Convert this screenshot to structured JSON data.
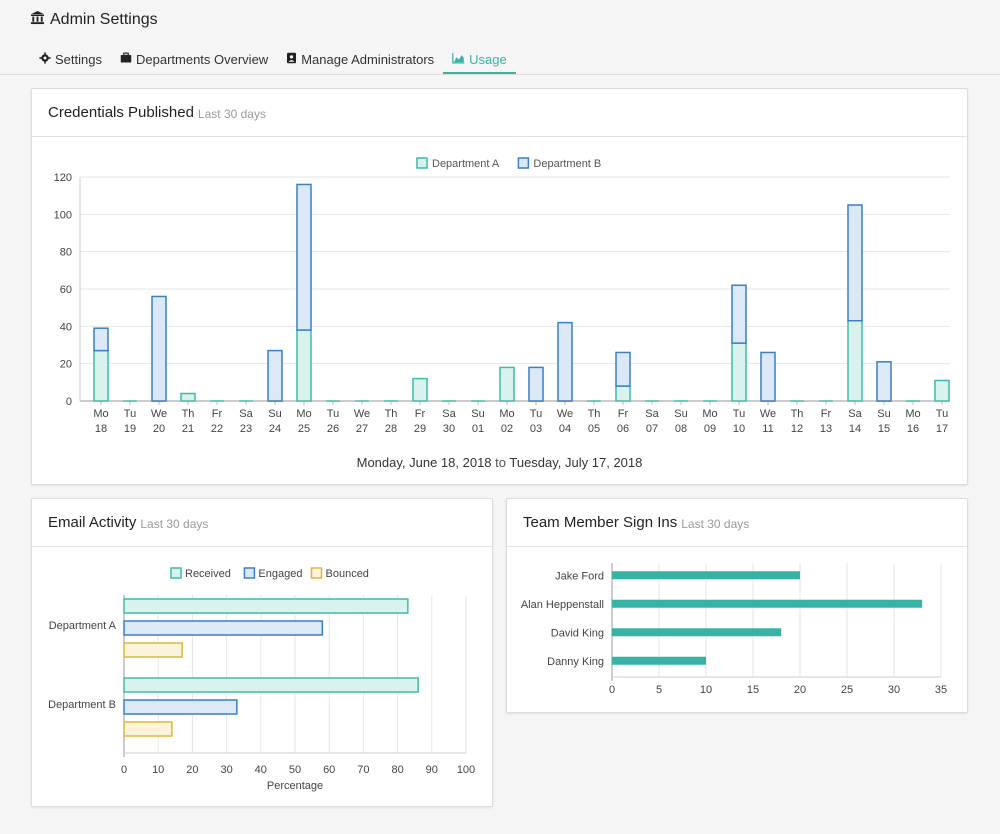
{
  "app": {
    "title": "Admin Settings",
    "icon": "bank-icon"
  },
  "tabs": [
    {
      "label": "Settings",
      "icon": "gear-icon",
      "active": false
    },
    {
      "label": "Departments Overview",
      "icon": "briefcase-icon",
      "active": false
    },
    {
      "label": "Manage Administrators",
      "icon": "id-badge-icon",
      "active": false
    },
    {
      "label": "Usage",
      "icon": "area-chart-icon",
      "active": true
    }
  ],
  "colors": {
    "accent": "#37b3a5",
    "deptA_fill": "#d9f2ee",
    "deptA_stroke": "#3cbca9",
    "deptB_fill": "#dbe8f6",
    "deptB_stroke": "#3b7fc4",
    "bounced_fill": "#fbf3da",
    "bounced_stroke": "#e0b53d"
  },
  "credentials": {
    "title": "Credentials Published",
    "subtitle": "Last 30 days",
    "date_from": "Monday, June 18, 2018",
    "date_to_word": "to",
    "date_to": "Tuesday, July 17, 2018"
  },
  "email": {
    "title": "Email Activity",
    "subtitle": "Last 30 days"
  },
  "signins": {
    "title": "Team Member Sign Ins",
    "subtitle": "Last 30 days"
  },
  "chart_data": [
    {
      "type": "bar",
      "stacked": true,
      "categories": [
        [
          "Mo",
          "18"
        ],
        [
          "Tu",
          "19"
        ],
        [
          "We",
          "20"
        ],
        [
          "Th",
          "21"
        ],
        [
          "Fr",
          "22"
        ],
        [
          "Sa",
          "23"
        ],
        [
          "Su",
          "24"
        ],
        [
          "Mo",
          "25"
        ],
        [
          "Tu",
          "26"
        ],
        [
          "We",
          "27"
        ],
        [
          "Th",
          "28"
        ],
        [
          "Fr",
          "29"
        ],
        [
          "Sa",
          "30"
        ],
        [
          "Su",
          "01"
        ],
        [
          "Mo",
          "02"
        ],
        [
          "Tu",
          "03"
        ],
        [
          "We",
          "04"
        ],
        [
          "Th",
          "05"
        ],
        [
          "Fr",
          "06"
        ],
        [
          "Sa",
          "07"
        ],
        [
          "Su",
          "08"
        ],
        [
          "Mo",
          "09"
        ],
        [
          "Tu",
          "10"
        ],
        [
          "We",
          "11"
        ],
        [
          "Th",
          "12"
        ],
        [
          "Fr",
          "13"
        ],
        [
          "Sa",
          "14"
        ],
        [
          "Su",
          "15"
        ],
        [
          "Mo",
          "16"
        ],
        [
          "Tu",
          "17"
        ]
      ],
      "series": [
        {
          "name": "Department A",
          "values": [
            27,
            0,
            0,
            4,
            0,
            0,
            0,
            38,
            0,
            0,
            0,
            12,
            0,
            0,
            18,
            0,
            0,
            0,
            8,
            0,
            0,
            0,
            31,
            0,
            0,
            0,
            43,
            0,
            0,
            11
          ]
        },
        {
          "name": "Department B",
          "values": [
            12,
            0,
            56,
            0,
            0,
            0,
            27,
            78,
            0,
            0,
            0,
            0,
            0,
            0,
            0,
            18,
            42,
            0,
            18,
            0,
            0,
            0,
            31,
            26,
            0,
            0,
            62,
            21,
            0,
            0
          ]
        }
      ],
      "ylim": [
        0,
        120
      ],
      "yticks": [
        0,
        20,
        40,
        60,
        80,
        100,
        120
      ],
      "legend": "top-center",
      "grid": true
    },
    {
      "type": "bar",
      "orientation": "horizontal",
      "categories": [
        "Department A",
        "Department B"
      ],
      "series": [
        {
          "name": "Received",
          "values": [
            83,
            86
          ]
        },
        {
          "name": "Engaged",
          "values": [
            58,
            33
          ]
        },
        {
          "name": "Bounced",
          "values": [
            17,
            14
          ]
        }
      ],
      "xlabel": "Percentage",
      "xlim": [
        0,
        100
      ],
      "xticks": [
        0,
        10,
        20,
        30,
        40,
        50,
        60,
        70,
        80,
        90,
        100
      ],
      "legend": "top-center",
      "grid": true
    },
    {
      "type": "bar",
      "orientation": "horizontal",
      "categories": [
        "Jake Ford",
        "Alan Heppenstall",
        "David King",
        "Danny King"
      ],
      "values": [
        20,
        33,
        18,
        10
      ],
      "xlim": [
        0,
        35
      ],
      "xticks": [
        0,
        5,
        10,
        15,
        20,
        25,
        30,
        35
      ],
      "grid": true
    }
  ]
}
